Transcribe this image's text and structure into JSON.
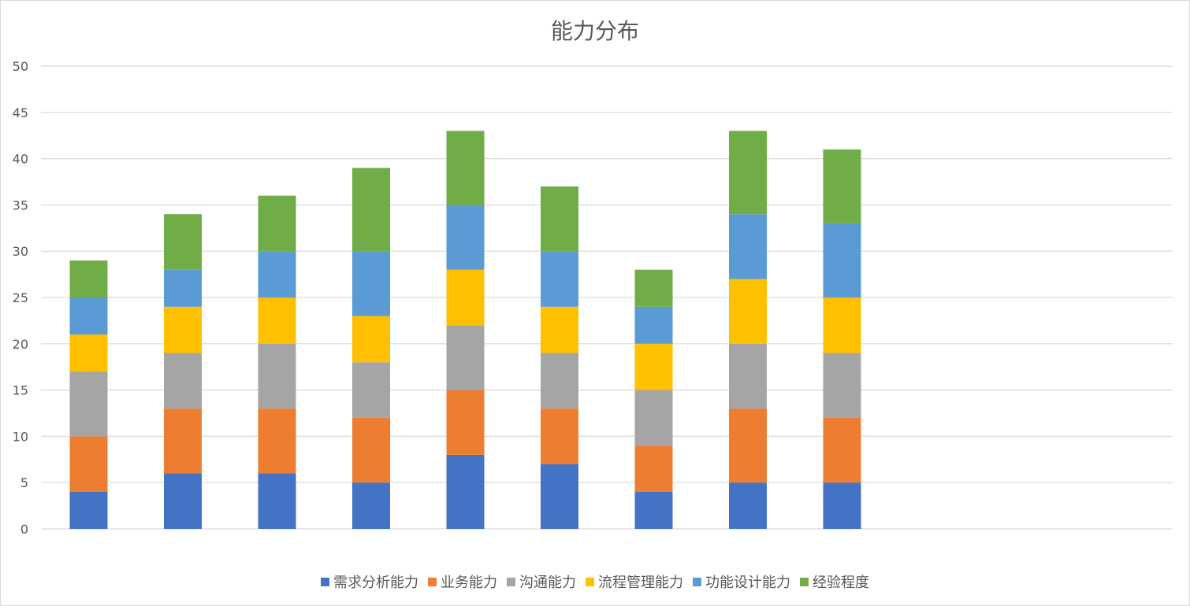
{
  "chart_data": {
    "type": "bar",
    "stacked": true,
    "title": "能力分布",
    "xlabel": "",
    "ylabel": "",
    "ylim": [
      0,
      50
    ],
    "yticks": [
      0,
      5,
      10,
      15,
      20,
      25,
      30,
      35,
      40,
      45,
      50
    ],
    "grid": true,
    "legend_position": "bottom",
    "categories": [
      "",
      "",
      "",
      "",
      "",
      "",
      "",
      "",
      ""
    ],
    "series": [
      {
        "name": "需求分析能力",
        "color": "#4472C4",
        "values": [
          4,
          6,
          6,
          5,
          8,
          7,
          4,
          5,
          5
        ]
      },
      {
        "name": "业务能力",
        "color": "#ED7D31",
        "values": [
          6,
          7,
          7,
          7,
          7,
          6,
          5,
          8,
          7
        ]
      },
      {
        "name": "沟通能力",
        "color": "#A5A5A5",
        "values": [
          7,
          6,
          7,
          6,
          7,
          6,
          6,
          7,
          7
        ]
      },
      {
        "name": "流程管理能力",
        "color": "#FFC000",
        "values": [
          4,
          5,
          5,
          5,
          6,
          5,
          5,
          7,
          6
        ]
      },
      {
        "name": "功能设计能力",
        "color": "#5B9BD5",
        "values": [
          4,
          4,
          5,
          7,
          7,
          6,
          4,
          7,
          8
        ]
      },
      {
        "name": "经验程度",
        "color": "#70AD47",
        "values": [
          4,
          6,
          6,
          9,
          8,
          7,
          4,
          9,
          8
        ]
      }
    ]
  }
}
